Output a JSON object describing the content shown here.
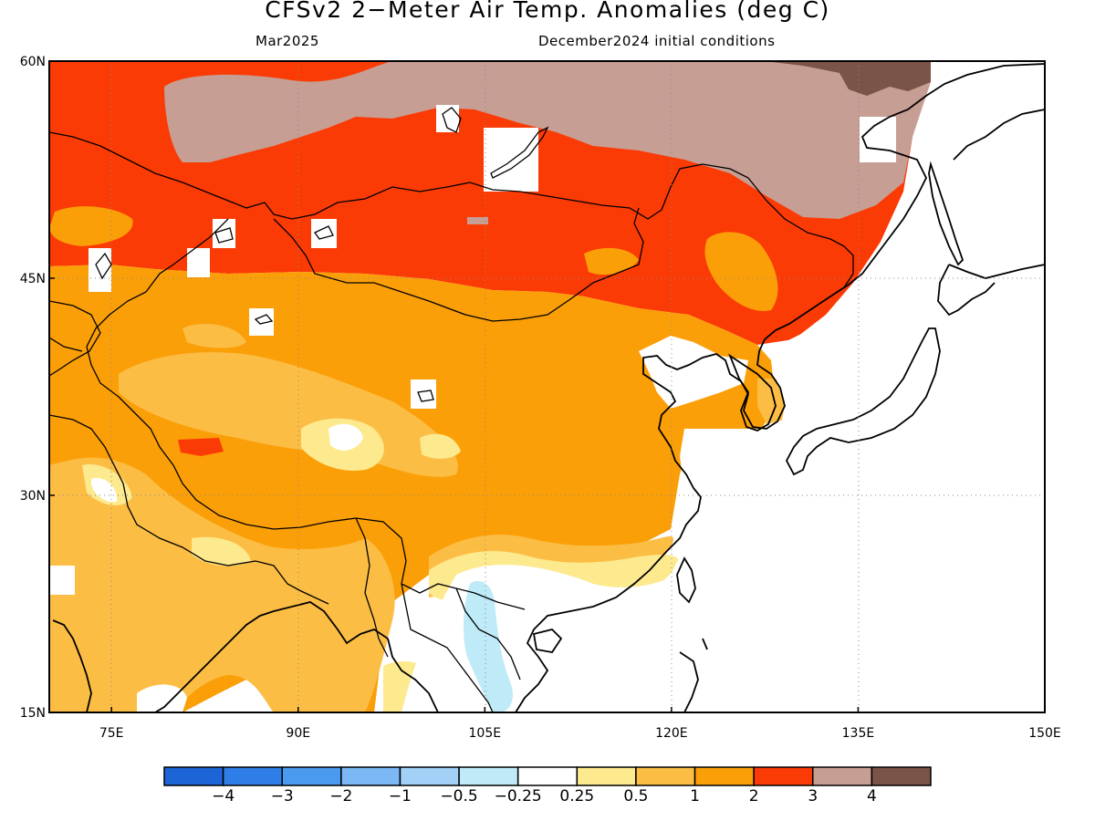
{
  "title": "CFSv2 2−Meter Air Temp. Anomalies (deg C)",
  "valid_month": "Mar2025",
  "initial_conditions": "December2024 initial conditions",
  "map": {
    "lon_range": [
      70,
      150
    ],
    "lat_range": [
      15,
      60
    ],
    "lat_ticks": [
      {
        "value": 60,
        "label": "60N"
      },
      {
        "value": 45,
        "label": "45N"
      },
      {
        "value": 30,
        "label": "30N"
      },
      {
        "value": 15,
        "label": "15N"
      }
    ],
    "lon_ticks": [
      {
        "value": 75,
        "label": "75E"
      },
      {
        "value": 90,
        "label": "90E"
      },
      {
        "value": 105,
        "label": "105E"
      },
      {
        "value": 120,
        "label": "120E"
      },
      {
        "value": 135,
        "label": "135E"
      },
      {
        "value": 150,
        "label": "150E"
      }
    ],
    "gridlines": "dotted"
  },
  "colorbar": {
    "colors": [
      "#1d64d6",
      "#2f7ee8",
      "#4a9bf0",
      "#7bb8f5",
      "#a2d0f7",
      "#bfeaf8",
      "#ffffff",
      "#fde98e",
      "#fcbd45",
      "#fb9f08",
      "#fb3b05",
      "#c69e94",
      "#7a5446"
    ],
    "labels": [
      "−4",
      "−3",
      "−2",
      "−1",
      "−0.5",
      "−0.25",
      "0.25",
      "0.5",
      "1",
      "2",
      "3",
      "4"
    ]
  }
}
